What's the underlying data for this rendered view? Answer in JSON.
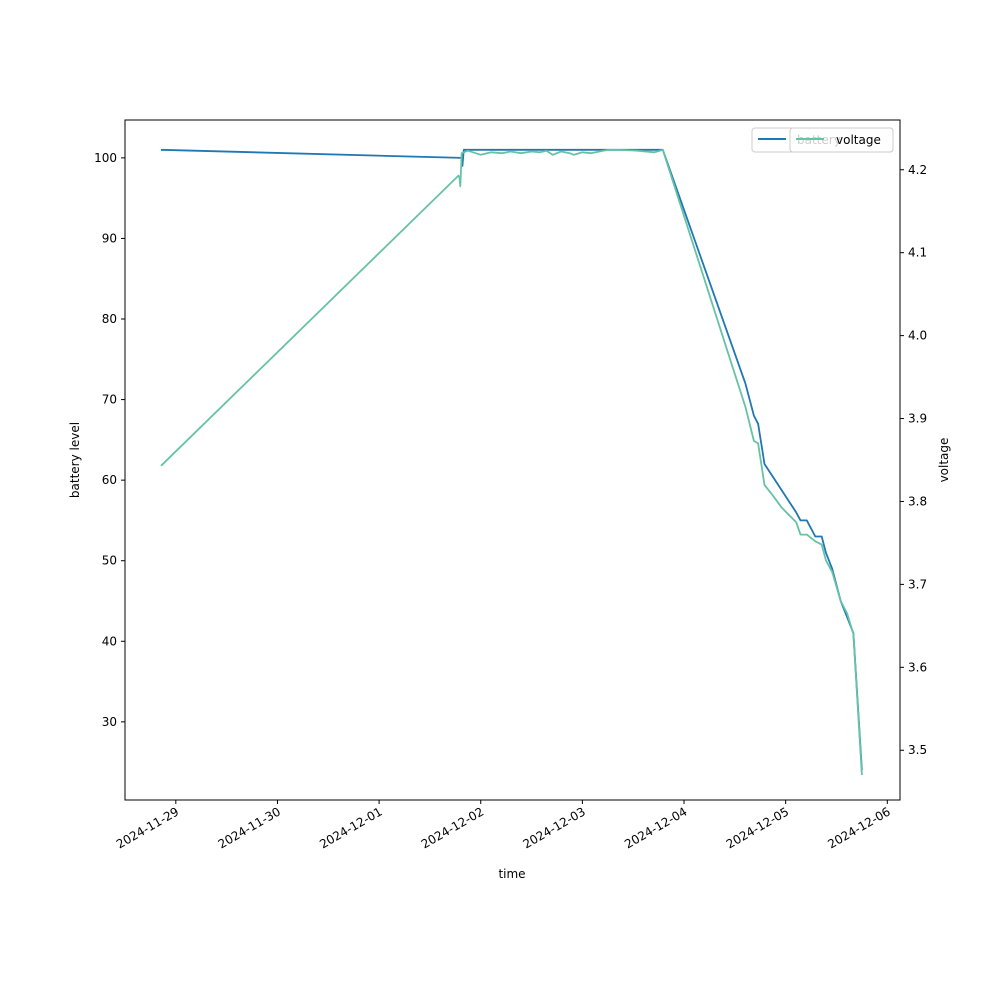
{
  "chart_data": {
    "type": "line",
    "xlabel": "time",
    "ylabel": "battery level",
    "y2label": "voltage",
    "xlim": [
      "2024-11-28T12:00",
      "2024-12-06T03:00"
    ],
    "ylim": [
      20.3,
      104.7
    ],
    "y2lim": [
      3.44,
      4.26
    ],
    "x_ticks": [
      "2024-11-29",
      "2024-11-30",
      "2024-12-01",
      "2024-12-02",
      "2024-12-03",
      "2024-12-04",
      "2024-12-05",
      "2024-12-06"
    ],
    "y_ticks": [
      30,
      40,
      50,
      60,
      70,
      80,
      90,
      100
    ],
    "y2_ticks": [
      "3.5",
      "3.6",
      "3.7",
      "3.8",
      "3.9",
      "4.0",
      "4.1",
      "4.2"
    ],
    "grid": false,
    "legend_position": "upper-right",
    "series": [
      {
        "name": "battery",
        "axis": "left",
        "color": "#1f77b4",
        "points": [
          [
            "2024-11-28T20:30",
            101
          ],
          [
            "2024-12-01T19:30",
            100
          ],
          [
            "2024-12-01T19:40",
            99
          ],
          [
            "2024-12-01T20:00",
            101
          ],
          [
            "2024-12-03T19:00",
            101
          ],
          [
            "2024-12-04T14:30",
            72
          ],
          [
            "2024-12-04T16:30",
            68
          ],
          [
            "2024-12-04T17:30",
            67
          ],
          [
            "2024-12-04T19:00",
            62
          ],
          [
            "2024-12-05T02:30",
            56
          ],
          [
            "2024-12-05T03:30",
            55
          ],
          [
            "2024-12-05T05:00",
            55
          ],
          [
            "2024-12-05T07:00",
            53
          ],
          [
            "2024-12-05T08:30",
            53
          ],
          [
            "2024-12-05T09:30",
            51
          ],
          [
            "2024-12-05T11:00",
            49
          ],
          [
            "2024-12-05T13:00",
            45
          ],
          [
            "2024-12-05T14:30",
            43
          ],
          [
            "2024-12-05T16:00",
            41
          ],
          [
            "2024-12-05T18:00",
            24
          ]
        ]
      },
      {
        "name": "voltage",
        "axis": "right",
        "color": "#66c2a5",
        "points": [
          [
            "2024-11-28T20:30",
            3.843
          ],
          [
            "2024-12-01T18:45",
            4.193
          ],
          [
            "2024-12-01T19:00",
            4.19
          ],
          [
            "2024-12-01T19:10",
            4.18
          ],
          [
            "2024-12-01T19:30",
            4.22
          ],
          [
            "2024-12-01T21:00",
            4.223
          ],
          [
            "2024-12-02T00:00",
            4.218
          ],
          [
            "2024-12-02T02:30",
            4.221
          ],
          [
            "2024-12-02T05:00",
            4.22
          ],
          [
            "2024-12-02T07:00",
            4.222
          ],
          [
            "2024-12-02T09:30",
            4.22
          ],
          [
            "2024-12-02T12:00",
            4.222
          ],
          [
            "2024-12-02T14:00",
            4.221
          ],
          [
            "2024-12-02T15:30",
            4.223
          ],
          [
            "2024-12-02T17:00",
            4.218
          ],
          [
            "2024-12-02T19:00",
            4.222
          ],
          [
            "2024-12-02T21:00",
            4.22
          ],
          [
            "2024-12-02T22:00",
            4.218
          ],
          [
            "2024-12-03T00:00",
            4.221
          ],
          [
            "2024-12-03T02:00",
            4.22
          ],
          [
            "2024-12-03T04:00",
            4.222
          ],
          [
            "2024-12-03T06:00",
            4.224
          ],
          [
            "2024-12-03T09:00",
            4.224
          ],
          [
            "2024-12-03T13:00",
            4.223
          ],
          [
            "2024-12-03T17:00",
            4.221
          ],
          [
            "2024-12-03T19:00",
            4.224
          ],
          [
            "2024-12-04T14:30",
            3.914
          ],
          [
            "2024-12-04T16:30",
            3.873
          ],
          [
            "2024-12-04T17:30",
            3.87
          ],
          [
            "2024-12-04T19:00",
            3.82
          ],
          [
            "2024-12-04T21:00",
            3.807
          ],
          [
            "2024-12-04T23:00",
            3.793
          ],
          [
            "2024-12-05T02:30",
            3.775
          ],
          [
            "2024-12-05T03:30",
            3.76
          ],
          [
            "2024-12-05T05:00",
            3.76
          ],
          [
            "2024-12-05T07:00",
            3.752
          ],
          [
            "2024-12-05T08:30",
            3.748
          ],
          [
            "2024-12-05T09:30",
            3.729
          ],
          [
            "2024-12-05T11:00",
            3.715
          ],
          [
            "2024-12-05T13:00",
            3.68
          ],
          [
            "2024-12-05T14:30",
            3.665
          ],
          [
            "2024-12-05T16:00",
            3.64
          ],
          [
            "2024-12-05T18:00",
            3.47
          ]
        ]
      }
    ],
    "legend_left": [
      {
        "label": "battery",
        "color": "#1f77b4"
      }
    ],
    "legend_right": [
      {
        "label": "voltage",
        "color": "#66c2a5"
      }
    ]
  }
}
